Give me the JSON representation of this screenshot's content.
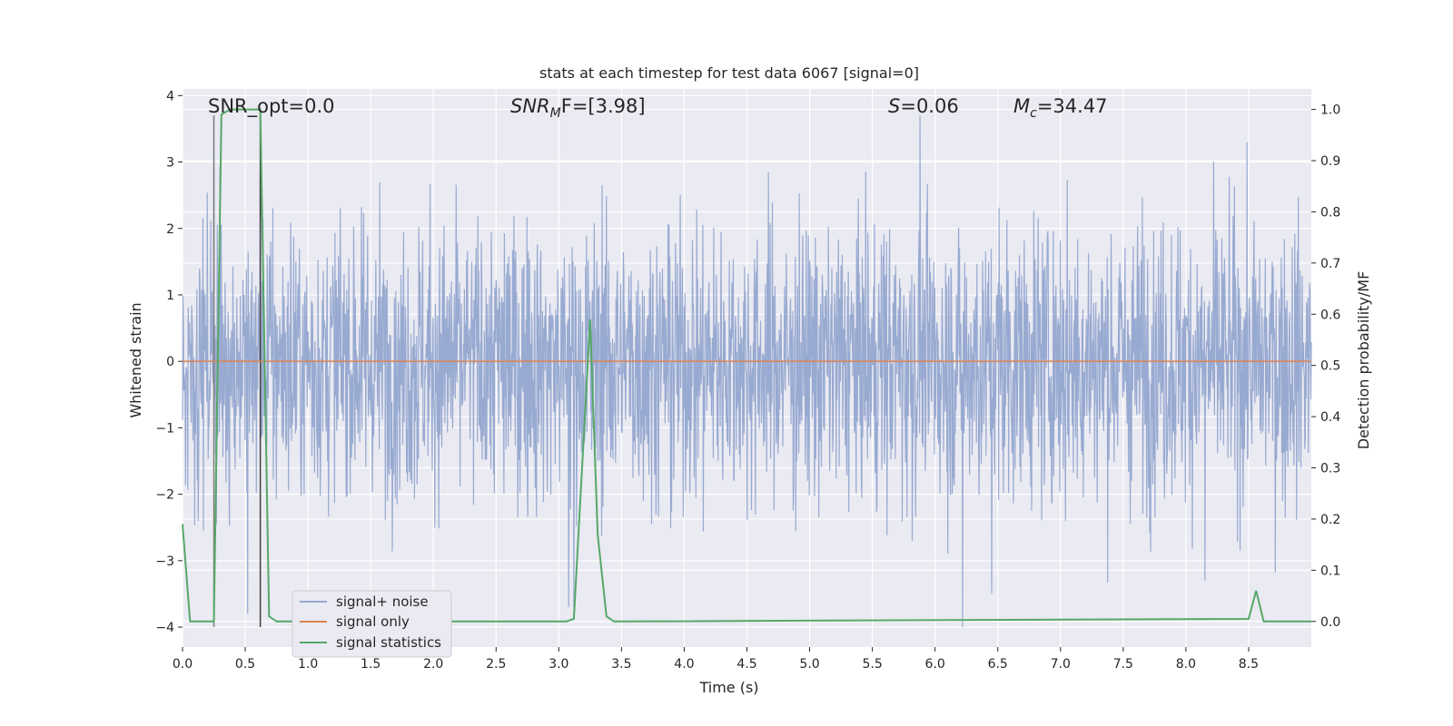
{
  "chart_data": {
    "type": "line",
    "title": "stats at each timestep for test data 6067 [signal=0]",
    "xlabel": "Time (s)",
    "ylabel_left": "Whitened strain",
    "ylabel_right": "Detection probability/MF",
    "xlim": [
      0.0,
      9.0
    ],
    "ylim_left": [
      -4.3,
      4.1
    ],
    "ylim_right": [
      -0.05,
      1.04
    ],
    "x_ticks": [
      "0.0",
      "0.5",
      "1.0",
      "1.5",
      "2.0",
      "2.5",
      "3.0",
      "3.5",
      "4.0",
      "4.5",
      "5.0",
      "5.5",
      "6.0",
      "6.5",
      "7.0",
      "7.5",
      "8.0",
      "8.5"
    ],
    "y_ticks_left": [
      "4",
      "3",
      "2",
      "1",
      "0",
      "−1",
      "−2",
      "−3",
      "−4"
    ],
    "y_ticks_right": [
      "1.0",
      "0.9",
      "0.8",
      "0.7",
      "0.6",
      "0.5",
      "0.4",
      "0.3",
      "0.2",
      "0.1",
      "0.0"
    ],
    "grid": true,
    "legend_position": "lower-left",
    "annotations": {
      "snr_opt": "SNR_opt=0.0",
      "snr_mf_sym": "SNR",
      "snr_mf_sub": "M",
      "snr_mf_rest": "F=[3.98]",
      "s_sym": "S",
      "s_rest": "=0.06",
      "mc_sym": "M",
      "mc_sub": "c",
      "mc_rest": "=34.47"
    },
    "series": [
      {
        "name": "signal+ noise",
        "color": "#94a7cf",
        "axis": "left",
        "description": "whitened noise, approximately within ±2 with spikes to ±3.7",
        "envelope": [
          -2.0,
          2.0
        ],
        "extremes": [
          {
            "x": 0.25,
            "y": 3.7
          },
          {
            "x": 0.62,
            "y": 3.7
          },
          {
            "x": 5.88,
            "y": 3.7
          },
          {
            "x": 0.52,
            "y": -3.8
          },
          {
            "x": 3.08,
            "y": -3.7
          },
          {
            "x": 3.12,
            "y": -3.7
          },
          {
            "x": 6.22,
            "y": -4.0
          },
          {
            "x": 6.45,
            "y": -3.5
          },
          {
            "x": 8.15,
            "y": -3.3
          }
        ]
      },
      {
        "name": "signal only",
        "color": "#dd8452",
        "axis": "left",
        "x": [
          0.0,
          9.0
        ],
        "y": [
          0.0,
          0.0
        ]
      },
      {
        "name": "signal statistics",
        "color": "#55a868",
        "axis": "right",
        "x": [
          0.0,
          0.06,
          0.25,
          0.31,
          0.38,
          0.62,
          0.69,
          0.75,
          0.81,
          3.06,
          3.12,
          3.25,
          3.31,
          3.38,
          3.44,
          8.5,
          8.56,
          8.62,
          9.0
        ],
        "y": [
          0.19,
          0.0,
          0.0,
          0.99,
          1.0,
          1.0,
          0.01,
          0.0,
          0.0,
          0.0,
          0.005,
          0.59,
          0.17,
          0.01,
          0.0,
          0.005,
          0.06,
          0.0,
          0.0
        ]
      }
    ],
    "vertical_markers": [
      {
        "x": 0.25,
        "color": "#7f7f7f"
      },
      {
        "x": 0.62,
        "color": "#404040"
      }
    ]
  }
}
